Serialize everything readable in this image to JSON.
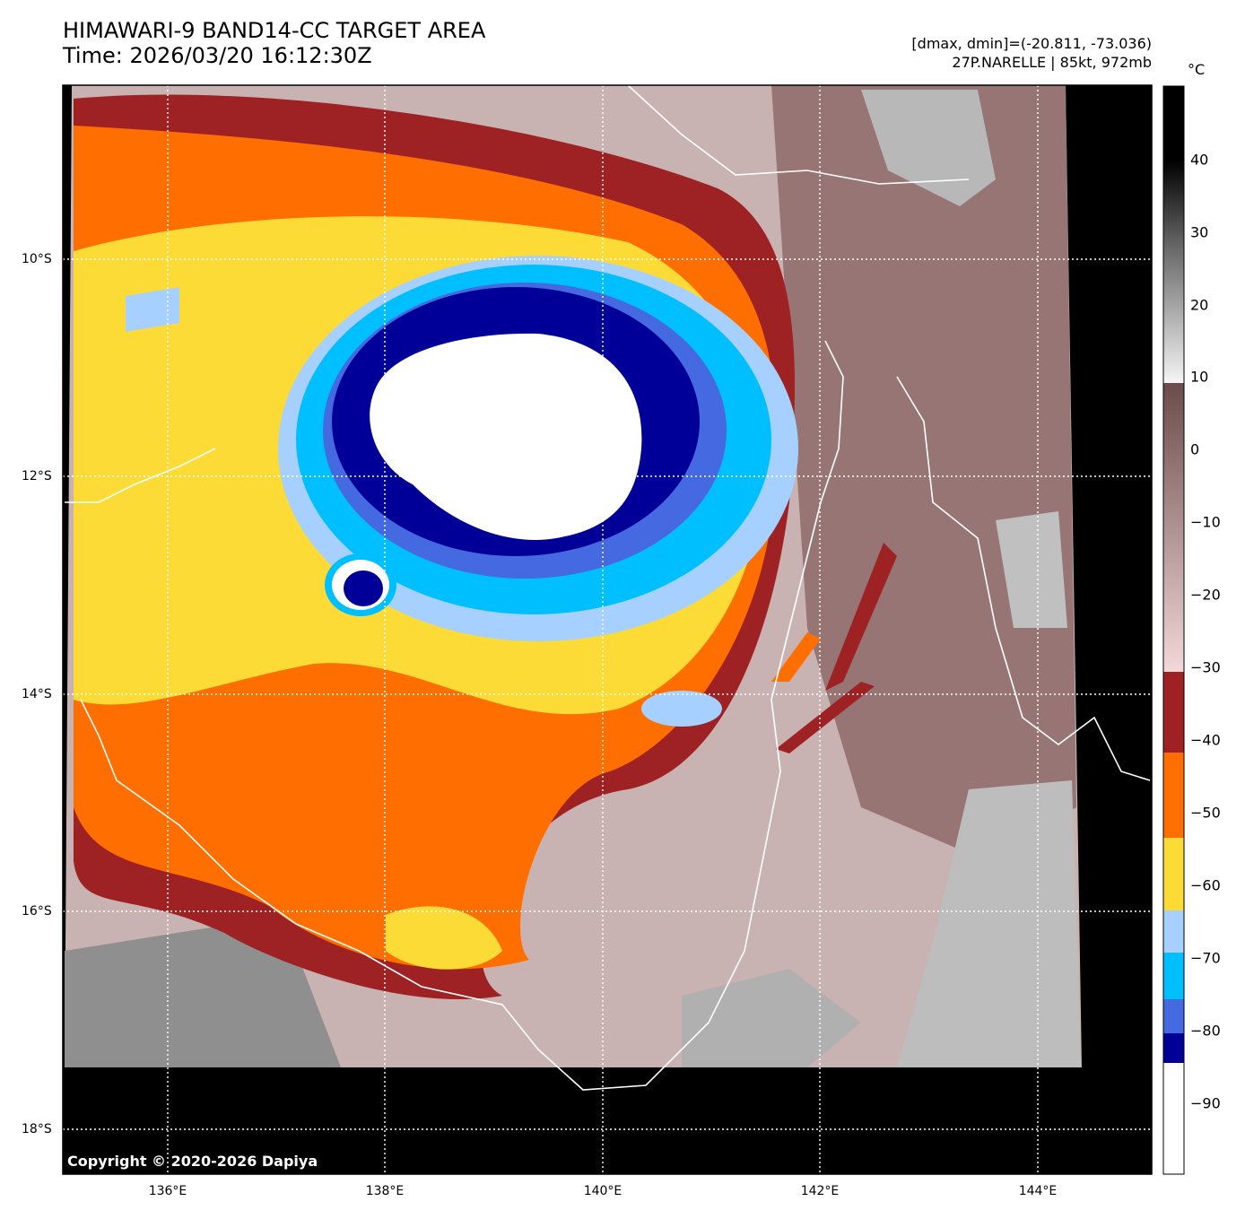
{
  "header": {
    "title_line1": "HIMAWARI-9 BAND14-CC TARGET AREA",
    "title_line2": "Time: 2026/03/20 16:12:30Z",
    "range_text": "[dmax, dmin]=(-20.811, -73.036)",
    "storm_text": "27P.NARELLE | 85kt, 972mb"
  },
  "axes": {
    "lat_labels": [
      "10°S",
      "12°S",
      "14°S",
      "16°S",
      "18°S"
    ],
    "lon_labels": [
      "136°E",
      "138°E",
      "140°E",
      "142°E",
      "144°E"
    ]
  },
  "colorbar": {
    "unit": "°C",
    "ticks": [
      "40",
      "30",
      "20",
      "10",
      "0",
      "−10",
      "−20",
      "−30",
      "−40",
      "−50",
      "−60",
      "−70",
      "−80",
      "−90"
    ],
    "colors": {
      "maroon": "#9e2124",
      "orange": "#ff6e00",
      "yellow": "#fddb36",
      "lightblue": "#a6d0ff",
      "cyan": "#00bfff",
      "blue": "#4469e0",
      "navy": "#000099",
      "white": "#ffffff",
      "pink": "#f2d6d6",
      "brown": "#7e5e5c"
    }
  },
  "footer": {
    "copyright": "Copyright © 2020-2026 Dapiya"
  }
}
